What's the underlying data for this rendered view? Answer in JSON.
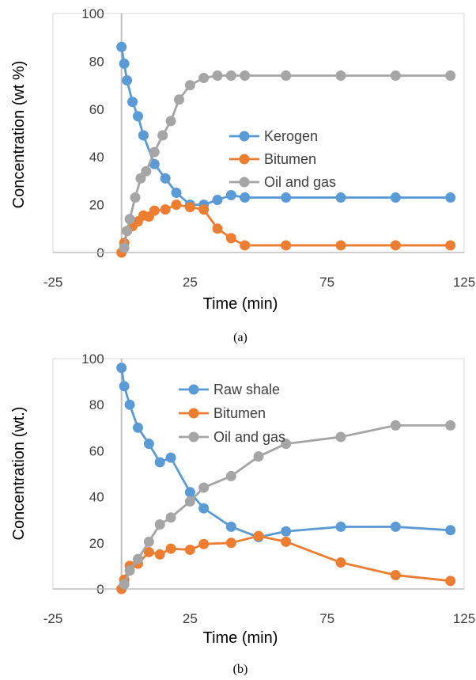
{
  "chart_data": [
    {
      "type": "scatter",
      "caption": "(a)",
      "xlabel": "Time (min)",
      "ylabel": "Concentration (wt %)",
      "xlim": [
        -25,
        125
      ],
      "ylim": [
        0,
        100
      ],
      "xticks": [
        -25,
        25,
        75,
        125
      ],
      "yticks": [
        0,
        20,
        40,
        60,
        80,
        100
      ],
      "grid": false,
      "legend": "center-right",
      "series": [
        {
          "name": "Kerogen",
          "color": "#5B9BD5",
          "x": [
            0,
            1,
            2,
            4,
            6,
            8,
            12,
            16,
            20,
            25,
            30,
            35,
            40,
            45,
            60,
            80,
            100,
            120
          ],
          "y": [
            86,
            79,
            72,
            63,
            57,
            49,
            37,
            31,
            25,
            20,
            20,
            22,
            24,
            23,
            23,
            23,
            23,
            23
          ]
        },
        {
          "name": "Bitumen",
          "color": "#ED7D31",
          "x": [
            0,
            1,
            2,
            4,
            6,
            8,
            10,
            12,
            16,
            20,
            25,
            30,
            35,
            40,
            45,
            60,
            80,
            100,
            120
          ],
          "y": [
            0,
            4,
            9,
            11,
            13,
            15.5,
            15,
            17.5,
            18,
            20,
            19,
            18,
            10,
            6,
            3,
            3,
            3,
            3,
            3
          ]
        },
        {
          "name": "Oil and gas",
          "color": "#A5A5A5",
          "x": [
            1,
            2,
            3,
            5,
            7,
            9,
            12,
            15,
            18,
            21,
            25,
            30,
            35,
            40,
            45,
            60,
            80,
            100,
            120
          ],
          "y": [
            2,
            9,
            14,
            23,
            31,
            34,
            42,
            49,
            55,
            64,
            70,
            73,
            74,
            74,
            74,
            74,
            74,
            74,
            74
          ]
        }
      ]
    },
    {
      "type": "scatter",
      "caption": "(b)",
      "xlabel": "Time (min)",
      "ylabel": "Concentration (wt.)",
      "xlim": [
        -25,
        125
      ],
      "ylim": [
        0,
        100
      ],
      "xticks": [
        -25,
        25,
        75,
        125
      ],
      "yticks": [
        0,
        20,
        40,
        60,
        80,
        100
      ],
      "grid": false,
      "legend": "top-center",
      "series": [
        {
          "name": "Raw shale",
          "color": "#5B9BD5",
          "x": [
            0,
            1,
            3,
            6,
            10,
            14,
            18,
            25,
            30,
            40,
            50,
            60,
            80,
            100,
            120
          ],
          "y": [
            96,
            88,
            80,
            70,
            63,
            55,
            57,
            42,
            35,
            27,
            22.5,
            25,
            27,
            27,
            25.5
          ]
        },
        {
          "name": "Bitumen",
          "color": "#ED7D31",
          "x": [
            0,
            1,
            3,
            6,
            10,
            14,
            18,
            25,
            30,
            40,
            50,
            60,
            80,
            100,
            120
          ],
          "y": [
            0,
            4,
            10,
            11,
            16,
            15,
            17.5,
            17,
            19.5,
            20,
            23,
            20.5,
            11.5,
            6,
            3.5
          ]
        },
        {
          "name": "Oil and gas",
          "color": "#A5A5A5",
          "x": [
            1,
            3,
            6,
            10,
            14,
            18,
            25,
            30,
            40,
            50,
            60,
            80,
            100,
            120
          ],
          "y": [
            2,
            8,
            13,
            20.5,
            28,
            31,
            38,
            44,
            49,
            57.5,
            63,
            66,
            71,
            71
          ]
        }
      ]
    }
  ]
}
